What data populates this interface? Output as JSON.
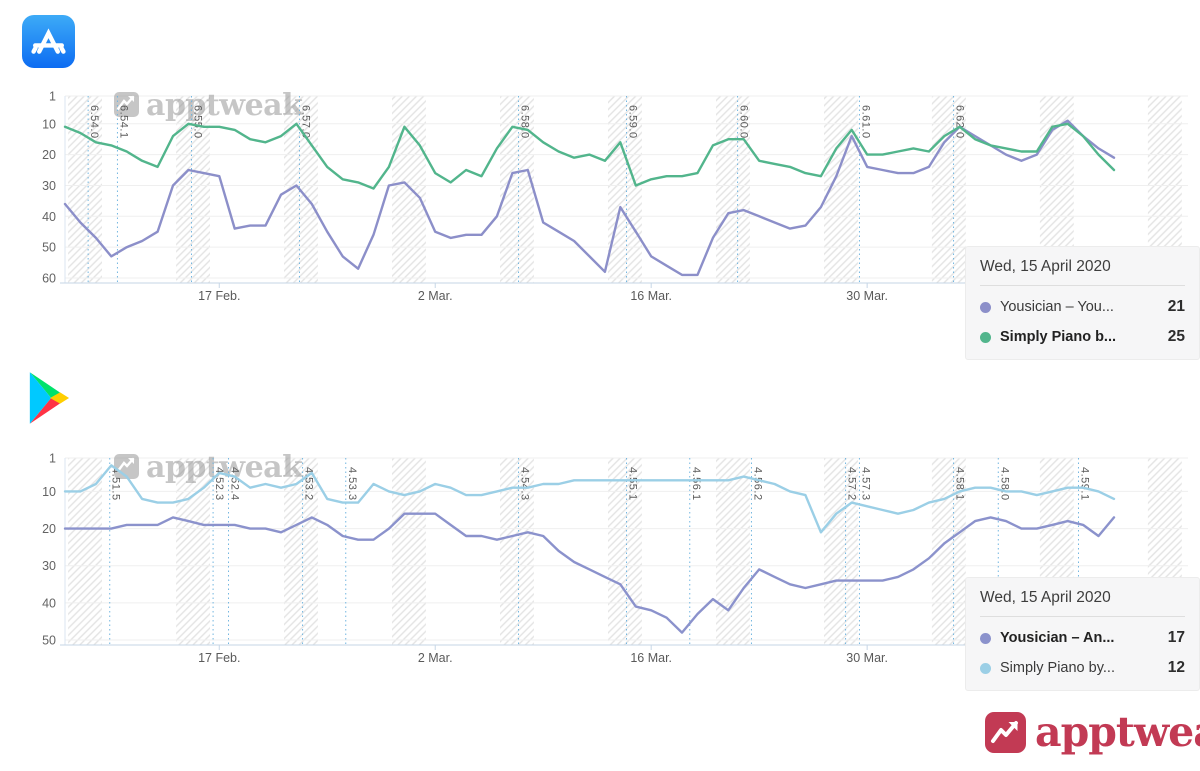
{
  "branding": {
    "logo_text": "apptweak",
    "watermark_text": "apptweak",
    "brand_color": "#c23a54"
  },
  "chart_data": [
    {
      "type": "line",
      "store": "app_store",
      "store_icon": "app-store-icon",
      "y_axis_inverted": true,
      "y_ticks": [
        1,
        10,
        20,
        30,
        40,
        50,
        60
      ],
      "ylim": [
        1,
        60
      ],
      "x_ticks": [
        {
          "day": 10,
          "label": "17 Feb."
        },
        {
          "day": 24,
          "label": "2 Mar."
        },
        {
          "day": 38,
          "label": "16 Mar."
        },
        {
          "day": 52,
          "label": "30 Mar."
        }
      ],
      "releases": [
        {
          "version": "6.54.0",
          "day": 1.5
        },
        {
          "version": "6.54.1",
          "day": 3.4
        },
        {
          "version": "6.55.0",
          "day": 8.2
        },
        {
          "version": "6.57.0",
          "day": 15.2
        },
        {
          "version": "6.58.0",
          "day": 29.4
        },
        {
          "version": "6.59.0",
          "day": 36.4
        },
        {
          "version": "6.60.0",
          "day": 43.6
        },
        {
          "version": "6.61.0",
          "day": 51.5
        },
        {
          "version": "6.62.0",
          "day": 57.6
        }
      ],
      "weekend_bands": {
        "first_start_day": 0.2,
        "width_days": 2.2,
        "interval_days": 7,
        "count": 11
      },
      "series": [
        {
          "key": "yousician",
          "name": "Yousician – You...",
          "color": "#8c8fc9",
          "values": [
            36,
            42,
            47,
            53,
            50,
            48,
            45,
            30,
            25,
            26,
            27,
            44,
            43,
            43,
            33,
            30,
            36,
            45,
            53,
            57,
            46,
            30,
            29,
            34,
            45,
            47,
            46,
            46,
            40,
            26,
            25,
            42,
            45,
            48,
            53,
            58,
            37,
            45,
            53,
            56,
            59,
            59,
            47,
            39,
            38,
            40,
            42,
            44,
            43,
            37,
            27,
            14,
            24,
            25,
            26,
            26,
            24,
            16,
            11,
            14,
            17,
            20,
            22,
            20,
            12,
            9,
            14,
            18,
            21
          ]
        },
        {
          "key": "simply-piano",
          "name": "Simply Piano b...",
          "color": "#52b58c",
          "values": [
            11,
            13,
            16,
            17,
            19,
            22,
            24,
            14,
            10,
            11,
            11,
            12,
            15,
            16,
            14,
            10,
            17,
            24,
            28,
            29,
            31,
            24,
            11,
            17,
            26,
            29,
            25,
            27,
            18,
            11,
            12,
            16,
            19,
            21,
            20,
            22,
            16,
            30,
            28,
            27,
            27,
            26,
            17,
            15,
            15,
            22,
            23,
            24,
            26,
            27,
            18,
            12,
            20,
            20,
            19,
            18,
            19,
            14,
            11,
            15,
            17,
            18,
            19,
            19,
            11,
            10,
            14,
            20,
            25
          ]
        }
      ],
      "tooltip": {
        "date": "Wed, 15 April 2020",
        "rows": [
          {
            "label": "Yousician – You...",
            "value": "21",
            "color": "#8c8fc9",
            "bold": false
          },
          {
            "label": "Simply Piano b...",
            "value": "25",
            "color": "#52b58c",
            "bold": true
          }
        ]
      }
    },
    {
      "type": "line",
      "store": "google_play",
      "store_icon": "google-play-icon",
      "y_axis_inverted": true,
      "y_ticks": [
        1,
        10,
        20,
        30,
        40,
        50
      ],
      "ylim": [
        1,
        50
      ],
      "x_ticks": [
        {
          "day": 10,
          "label": "17 Feb."
        },
        {
          "day": 24,
          "label": "2 Mar."
        },
        {
          "day": 38,
          "label": "16 Mar."
        },
        {
          "day": 52,
          "label": "30 Mar."
        }
      ],
      "releases": [
        {
          "version": "4.51.5",
          "day": 2.9
        },
        {
          "version": "4.52.3",
          "day": 9.6
        },
        {
          "version": "4.52.4",
          "day": 10.6
        },
        {
          "version": "4.53.2",
          "day": 15.4
        },
        {
          "version": "4.53.3",
          "day": 18.2
        },
        {
          "version": "4.54.3",
          "day": 29.4
        },
        {
          "version": "4.55.1",
          "day": 36.4
        },
        {
          "version": "4.56.1",
          "day": 40.5
        },
        {
          "version": "4.56.2",
          "day": 44.5
        },
        {
          "version": "4.57.2",
          "day": 50.6
        },
        {
          "version": "4.57.3",
          "day": 51.5
        },
        {
          "version": "4.58.1",
          "day": 57.6
        },
        {
          "version": "4.58.0",
          "day": 60.5
        },
        {
          "version": "4.59.1",
          "day": 65.7
        }
      ],
      "weekend_bands": {
        "first_start_day": 0.2,
        "width_days": 2.2,
        "interval_days": 7,
        "count": 11
      },
      "series": [
        {
          "key": "yousician",
          "name": "Yousician – An...",
          "color": "#8b92cc",
          "values": [
            20,
            20,
            20,
            20,
            19,
            19,
            19,
            17,
            18,
            19,
            19,
            19,
            20,
            20,
            21,
            19,
            17,
            19,
            22,
            23,
            23,
            20,
            16,
            16,
            16,
            19,
            22,
            22,
            23,
            22,
            21,
            22,
            26,
            29,
            31,
            33,
            35,
            41,
            42,
            44,
            48,
            43,
            39,
            42,
            36,
            31,
            33,
            35,
            36,
            35,
            34,
            34,
            34,
            34,
            33,
            31,
            28,
            24,
            21,
            18,
            17,
            18,
            20,
            20,
            19,
            18,
            19,
            22,
            17
          ]
        },
        {
          "key": "simply-piano",
          "name": "Simply Piano by...",
          "color": "#9bcfe6",
          "values": [
            10,
            10,
            8,
            3,
            6,
            12,
            13,
            13,
            12,
            9,
            5,
            6,
            9,
            8,
            9,
            8,
            5,
            12,
            13,
            13,
            8,
            10,
            11,
            10,
            8,
            9,
            11,
            11,
            10,
            9,
            9,
            8,
            8,
            7,
            7,
            7,
            7,
            7,
            7,
            7,
            7,
            7,
            7,
            7,
            6,
            7,
            8,
            10,
            11,
            21,
            16,
            13,
            14,
            15,
            16,
            15,
            13,
            12,
            10,
            9,
            9,
            10,
            10,
            11,
            10,
            9,
            9,
            10,
            12
          ]
        }
      ],
      "tooltip": {
        "date": "Wed, 15 April 2020",
        "rows": [
          {
            "label": "Yousician – An...",
            "value": "17",
            "color": "#8b92cc",
            "bold": true
          },
          {
            "label": "Simply Piano by...",
            "value": "12",
            "color": "#9bcfe6",
            "bold": false
          }
        ]
      }
    }
  ]
}
